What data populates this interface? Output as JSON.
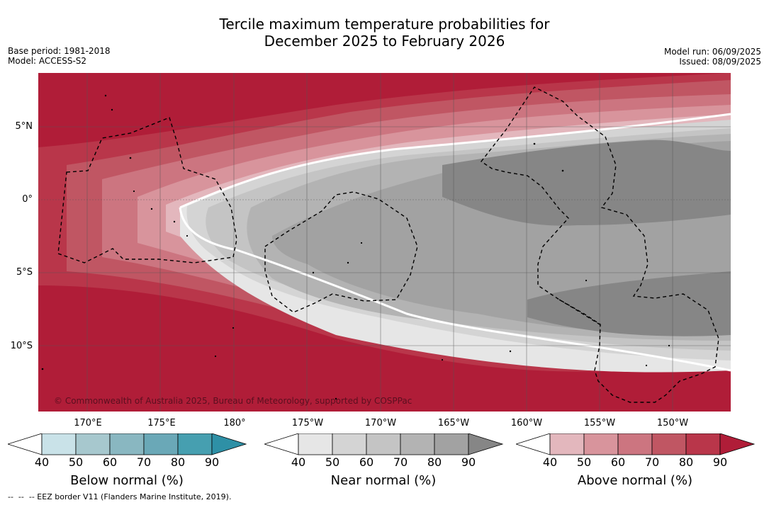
{
  "title_line1": "Tercile maximum temperature probabilities for",
  "title_line2": "December 2025 to February 2026",
  "base_period": "Base period: 1981-2018",
  "model": "Model: ACCESS-S2",
  "model_run": "Model run: 06/09/2025",
  "issued": "Issued: 08/09/2025",
  "copyright": "© Commonwealth of Australia 2025, Bureau of Meteorology, supported by COSPPac",
  "latitudes": [
    "5°N",
    "0°",
    "5°S",
    "10°S"
  ],
  "longitudes": [
    "170°E",
    "175°E",
    "180°",
    "175°W",
    "170°W",
    "165°W",
    "160°W",
    "155°W",
    "150°W"
  ],
  "colorbars": [
    {
      "title": "Below normal (%)",
      "ticks": [
        "40",
        "50",
        "60",
        "70",
        "80",
        "90"
      ],
      "colors": [
        "#ffffff",
        "#c9e2e8",
        "#a7c8ce",
        "#89b7c1",
        "#6aa8b7",
        "#469fb0",
        "#2e90a6"
      ]
    },
    {
      "title": "Near normal (%)",
      "ticks": [
        "40",
        "50",
        "60",
        "70",
        "80",
        "90"
      ],
      "colors": [
        "#ffffff",
        "#e6e6e6",
        "#d4d4d4",
        "#c4c4c4",
        "#b3b3b3",
        "#a2a2a2",
        "#868686"
      ]
    },
    {
      "title": "Above normal (%)",
      "ticks": [
        "40",
        "50",
        "60",
        "70",
        "80",
        "90"
      ],
      "colors": [
        "#ffffff",
        "#e3b7bd",
        "#d8949c",
        "#cc7580",
        "#c05663",
        "#b9364a",
        "#b01d38"
      ]
    }
  ],
  "footnote": "--  --  -- EEZ border V11 (Flanders Marine Institute, 2019)."
}
